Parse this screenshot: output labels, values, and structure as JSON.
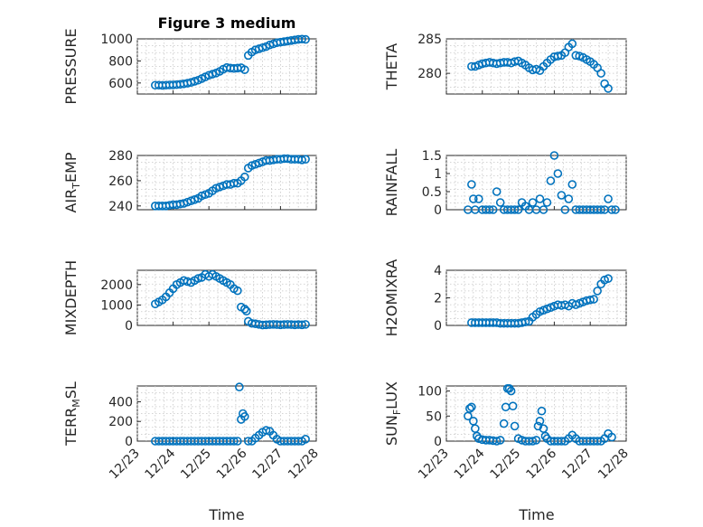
{
  "figure": {
    "title": "Figure 3 medium",
    "xlabel": "Time"
  },
  "chart_data": [
    {
      "type": "scatter",
      "id": "pressure",
      "ylabel": "PRESSURE",
      "ylim": [
        500,
        1000
      ],
      "yticks": [
        600,
        800,
        1000
      ],
      "xlim": [
        0,
        5
      ],
      "xticks": [
        "12/23",
        "12/24",
        "12/25",
        "12/26",
        "12/27",
        "12/28"
      ],
      "x": [
        0.5,
        0.6,
        0.7,
        0.8,
        0.9,
        1.0,
        1.1,
        1.2,
        1.3,
        1.4,
        1.5,
        1.6,
        1.7,
        1.8,
        1.9,
        2.0,
        2.1,
        2.2,
        2.3,
        2.4,
        2.5,
        2.6,
        2.7,
        2.8,
        2.9,
        3.0,
        3.1,
        3.2,
        3.3,
        3.4,
        3.5,
        3.6,
        3.7,
        3.8,
        3.9,
        4.0,
        4.1,
        4.2,
        4.3,
        4.4,
        4.5,
        4.6,
        4.7
      ],
      "y": [
        580,
        580,
        578,
        580,
        582,
        583,
        585,
        588,
        592,
        598,
        605,
        615,
        625,
        640,
        655,
        670,
        680,
        690,
        705,
        725,
        740,
        735,
        732,
        735,
        738,
        720,
        850,
        880,
        900,
        910,
        920,
        930,
        945,
        955,
        965,
        970,
        975,
        980,
        985,
        990,
        995,
        998,
        995
      ],
      "marker": "o",
      "color": "#0072BD"
    },
    {
      "type": "scatter",
      "id": "theta",
      "ylabel": "THETA",
      "ylim": [
        277,
        285
      ],
      "yticks": [
        280,
        285
      ],
      "xlim": [
        0,
        5
      ],
      "xticks": [
        "12/23",
        "12/24",
        "12/25",
        "12/26",
        "12/27",
        "12/28"
      ],
      "x": [
        0.7,
        0.8,
        0.9,
        1.0,
        1.1,
        1.2,
        1.3,
        1.4,
        1.5,
        1.6,
        1.7,
        1.8,
        1.9,
        2.0,
        2.1,
        2.2,
        2.3,
        2.4,
        2.5,
        2.6,
        2.7,
        2.8,
        2.9,
        3.0,
        3.1,
        3.2,
        3.3,
        3.4,
        3.5,
        3.6,
        3.7,
        3.8,
        3.9,
        4.0,
        4.1,
        4.2,
        4.3,
        4.4,
        4.5
      ],
      "y": [
        281,
        281,
        281.2,
        281.4,
        281.5,
        281.6,
        281.5,
        281.4,
        281.5,
        281.6,
        281.6,
        281.5,
        281.7,
        281.8,
        281.5,
        281.2,
        280.8,
        280.5,
        280.6,
        280.4,
        281.0,
        281.5,
        282.0,
        282.4,
        282.5,
        282.6,
        283.0,
        283.8,
        284.3,
        282.6,
        282.5,
        282.3,
        282.0,
        281.7,
        281.3,
        280.8,
        280,
        278.5,
        277.8
      ]
    },
    {
      "type": "scatter",
      "id": "air_temp",
      "ylabel": "AIR",
      "ylabel_sub": "T",
      "ylabel_tail": "EMP",
      "ylim": [
        237,
        280
      ],
      "yticks": [
        240,
        260,
        280
      ],
      "xlim": [
        0,
        5
      ],
      "xticks": [
        "12/23",
        "12/24",
        "12/25",
        "12/26",
        "12/27",
        "12/28"
      ],
      "x": [
        0.5,
        0.6,
        0.7,
        0.8,
        0.9,
        1.0,
        1.1,
        1.2,
        1.3,
        1.4,
        1.5,
        1.6,
        1.7,
        1.8,
        1.9,
        2.0,
        2.1,
        2.2,
        2.3,
        2.4,
        2.5,
        2.6,
        2.7,
        2.8,
        2.9,
        3.0,
        3.1,
        3.2,
        3.3,
        3.4,
        3.5,
        3.6,
        3.7,
        3.8,
        3.9,
        4.0,
        4.1,
        4.2,
        4.3,
        4.4,
        4.5,
        4.6,
        4.7
      ],
      "y": [
        240,
        240,
        240,
        240,
        240.5,
        241,
        241,
        241.5,
        242,
        243,
        244,
        245,
        246,
        248,
        249,
        250,
        252,
        254,
        255,
        256,
        257,
        257,
        258,
        258,
        260,
        263,
        270,
        272,
        273,
        274,
        275,
        276,
        276,
        276.5,
        277,
        277,
        277.5,
        277.5,
        277,
        277,
        277,
        276.5,
        277
      ]
    },
    {
      "type": "scatter",
      "id": "rainfall",
      "ylabel": "RAINFALL",
      "ylim": [
        0,
        1.5
      ],
      "yticks": [
        0,
        0.5,
        1,
        1.5
      ],
      "xlim": [
        0,
        5
      ],
      "xticks": [
        "12/23",
        "12/24",
        "12/25",
        "12/26",
        "12/27",
        "12/28"
      ],
      "x": [
        0.6,
        0.7,
        0.75,
        0.8,
        0.9,
        1.0,
        1.1,
        1.2,
        1.3,
        1.4,
        1.5,
        1.6,
        1.7,
        1.8,
        1.9,
        2.0,
        2.1,
        2.2,
        2.3,
        2.4,
        2.5,
        2.6,
        2.7,
        2.8,
        2.9,
        3.0,
        3.1,
        3.2,
        3.3,
        3.4,
        3.5,
        3.6,
        3.7,
        3.8,
        3.9,
        4.0,
        4.1,
        4.2,
        4.3,
        4.4,
        4.5,
        4.6,
        4.7
      ],
      "y": [
        0,
        0.7,
        0.3,
        0,
        0.3,
        0,
        0,
        0,
        0,
        0.5,
        0.2,
        0,
        0,
        0,
        0,
        0,
        0.2,
        0.1,
        0,
        0.2,
        0,
        0.3,
        0,
        0.2,
        0.8,
        1.5,
        1.0,
        0.4,
        0,
        0.3,
        0.7,
        0,
        0,
        0,
        0,
        0,
        0,
        0,
        0,
        0,
        0.3,
        0,
        0
      ]
    },
    {
      "type": "scatter",
      "id": "mixdepth",
      "ylabel": "MIXDEPTH",
      "ylim": [
        0,
        2700
      ],
      "yticks": [
        0,
        1000,
        2000
      ],
      "xlim": [
        0,
        5
      ],
      "xticks": [
        "12/23",
        "12/24",
        "12/25",
        "12/26",
        "12/27",
        "12/28"
      ],
      "x": [
        0.5,
        0.6,
        0.7,
        0.8,
        0.9,
        1.0,
        1.1,
        1.2,
        1.3,
        1.4,
        1.5,
        1.6,
        1.7,
        1.8,
        1.9,
        2.0,
        2.1,
        2.2,
        2.3,
        2.4,
        2.5,
        2.6,
        2.7,
        2.8,
        2.9,
        3.0,
        3.05,
        3.1,
        3.2,
        3.3,
        3.4,
        3.5,
        3.6,
        3.7,
        3.8,
        3.9,
        4.0,
        4.1,
        4.2,
        4.3,
        4.4,
        4.5,
        4.6,
        4.7
      ],
      "y": [
        1050,
        1150,
        1250,
        1400,
        1600,
        1800,
        2000,
        2100,
        2200,
        2150,
        2100,
        2200,
        2300,
        2350,
        2500,
        2400,
        2500,
        2400,
        2300,
        2200,
        2100,
        2000,
        1800,
        1700,
        900,
        800,
        700,
        200,
        100,
        80,
        50,
        20,
        30,
        40,
        50,
        40,
        30,
        40,
        50,
        40,
        30,
        40,
        30,
        50
      ]
    },
    {
      "type": "scatter",
      "id": "h2omixra",
      "ylabel": "H2OMIXRA",
      "ylim": [
        0,
        4
      ],
      "yticks": [
        0,
        2,
        4
      ],
      "xlim": [
        0,
        5
      ],
      "xticks": [
        "12/23",
        "12/24",
        "12/25",
        "12/26",
        "12/27",
        "12/28"
      ],
      "x": [
        0.7,
        0.8,
        0.9,
        1.0,
        1.1,
        1.2,
        1.3,
        1.4,
        1.5,
        1.6,
        1.7,
        1.8,
        1.9,
        2.0,
        2.1,
        2.2,
        2.3,
        2.4,
        2.5,
        2.6,
        2.7,
        2.8,
        2.9,
        3.0,
        3.1,
        3.2,
        3.3,
        3.4,
        3.5,
        3.6,
        3.7,
        3.8,
        3.9,
        4.0,
        4.1,
        4.2,
        4.3,
        4.4,
        4.5
      ],
      "y": [
        0.2,
        0.2,
        0.2,
        0.2,
        0.2,
        0.2,
        0.2,
        0.2,
        0.15,
        0.15,
        0.15,
        0.15,
        0.15,
        0.15,
        0.2,
        0.25,
        0.3,
        0.6,
        0.8,
        1.0,
        1.1,
        1.2,
        1.3,
        1.4,
        1.5,
        1.45,
        1.5,
        1.4,
        1.6,
        1.5,
        1.6,
        1.7,
        1.8,
        1.85,
        1.9,
        2.5,
        3.0,
        3.3,
        3.4
      ]
    },
    {
      "type": "scatter",
      "id": "terr_msl",
      "ylabel": "TERR",
      "ylabel_sub": "M",
      "ylabel_tail": "SL",
      "ylim": [
        0,
        560
      ],
      "yticks": [
        0,
        200,
        400
      ],
      "xlim": [
        0,
        5
      ],
      "xticks": [
        "12/23",
        "12/24",
        "12/25",
        "12/26",
        "12/27",
        "12/28"
      ],
      "x": [
        0.5,
        0.6,
        0.7,
        0.8,
        0.9,
        1.0,
        1.1,
        1.2,
        1.3,
        1.4,
        1.5,
        1.6,
        1.7,
        1.8,
        1.9,
        2.0,
        2.1,
        2.2,
        2.3,
        2.4,
        2.5,
        2.6,
        2.7,
        2.8,
        2.85,
        2.9,
        2.95,
        3.0,
        3.1,
        3.2,
        3.3,
        3.4,
        3.5,
        3.6,
        3.7,
        3.8,
        3.9,
        4.0,
        4.1,
        4.2,
        4.3,
        4.4,
        4.5,
        4.6,
        4.7
      ],
      "y": [
        0,
        0,
        0,
        0,
        0,
        0,
        0,
        0,
        0,
        0,
        0,
        0,
        0,
        0,
        0,
        0,
        0,
        0,
        0,
        0,
        0,
        0,
        0,
        0,
        550,
        220,
        280,
        250,
        0,
        0,
        30,
        60,
        90,
        110,
        100,
        60,
        20,
        0,
        0,
        0,
        0,
        0,
        0,
        0,
        20
      ]
    },
    {
      "type": "scatter",
      "id": "sun_flux",
      "ylabel": "SUN",
      "ylabel_sub": "F",
      "ylabel_tail": "LUX",
      "ylim": [
        0,
        110
      ],
      "yticks": [
        0,
        50,
        100
      ],
      "xlim": [
        0,
        5
      ],
      "xticks": [
        "12/23",
        "12/24",
        "12/25",
        "12/26",
        "12/27",
        "12/28"
      ],
      "x": [
        0.6,
        0.65,
        0.7,
        0.75,
        0.8,
        0.85,
        0.9,
        1.0,
        1.1,
        1.2,
        1.3,
        1.4,
        1.5,
        1.6,
        1.65,
        1.7,
        1.75,
        1.8,
        1.85,
        1.9,
        2.0,
        2.1,
        2.2,
        2.3,
        2.4,
        2.5,
        2.55,
        2.6,
        2.65,
        2.7,
        2.75,
        2.8,
        2.9,
        3.0,
        3.1,
        3.2,
        3.3,
        3.4,
        3.5,
        3.6,
        3.7,
        3.8,
        3.9,
        4.0,
        4.1,
        4.2,
        4.3,
        4.4,
        4.5,
        4.6
      ],
      "y": [
        50,
        65,
        68,
        40,
        25,
        10,
        5,
        3,
        2,
        2,
        1,
        0,
        2,
        35,
        68,
        105,
        105,
        100,
        70,
        30,
        5,
        2,
        0,
        0,
        0,
        2,
        30,
        40,
        60,
        25,
        10,
        5,
        0,
        0,
        0,
        0,
        0,
        5,
        12,
        5,
        0,
        0,
        0,
        0,
        0,
        0,
        0,
        5,
        15,
        8
      ]
    }
  ]
}
